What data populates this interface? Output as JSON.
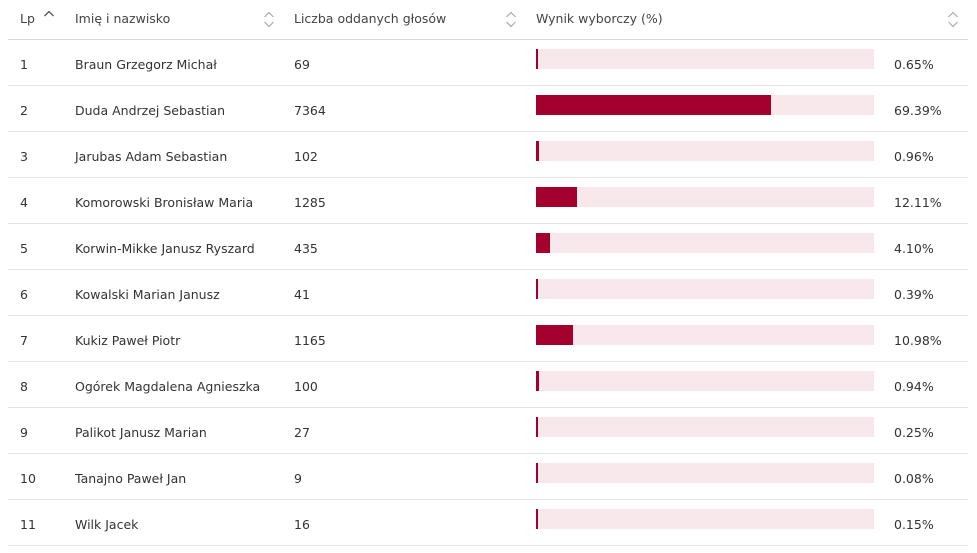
{
  "table": {
    "columns": {
      "lp": "Lp",
      "name": "Imię i nazwisko",
      "votes": "Liczba oddanych głosów",
      "result": "Wynik wyborczy (%)"
    },
    "rows": [
      {
        "lp": "1",
        "name": "Braun Grzegorz Michał",
        "votes": "69",
        "pct": "0.65%",
        "share": 0.65
      },
      {
        "lp": "2",
        "name": "Duda Andrzej Sebastian",
        "votes": "7364",
        "pct": "69.39%",
        "share": 69.39
      },
      {
        "lp": "3",
        "name": "Jarubas Adam Sebastian",
        "votes": "102",
        "pct": "0.96%",
        "share": 0.96
      },
      {
        "lp": "4",
        "name": "Komorowski Bronisław Maria",
        "votes": "1285",
        "pct": "12.11%",
        "share": 12.11
      },
      {
        "lp": "5",
        "name": "Korwin-Mikke Janusz Ryszard",
        "votes": "435",
        "pct": "4.10%",
        "share": 4.1
      },
      {
        "lp": "6",
        "name": "Kowalski Marian Janusz",
        "votes": "41",
        "pct": "0.39%",
        "share": 0.39
      },
      {
        "lp": "7",
        "name": "Kukiz Paweł Piotr",
        "votes": "1165",
        "pct": "10.98%",
        "share": 10.98
      },
      {
        "lp": "8",
        "name": "Ogórek Magdalena Agnieszka",
        "votes": "100",
        "pct": "0.94%",
        "share": 0.94
      },
      {
        "lp": "9",
        "name": "Palikot Janusz Marian",
        "votes": "27",
        "pct": "0.25%",
        "share": 0.25
      },
      {
        "lp": "10",
        "name": "Tanajno Paweł Jan",
        "votes": "9",
        "pct": "0.08%",
        "share": 0.08
      },
      {
        "lp": "11",
        "name": "Wilk Jacek",
        "votes": "16",
        "pct": "0.15%",
        "share": 0.15
      }
    ]
  },
  "colors": {
    "bar_fill": "#a3002d",
    "bar_track": "#f8e8ec"
  },
  "icons": {
    "lp_sort": "chevron-up-icon",
    "column_sort": "sort-updown-icon"
  }
}
